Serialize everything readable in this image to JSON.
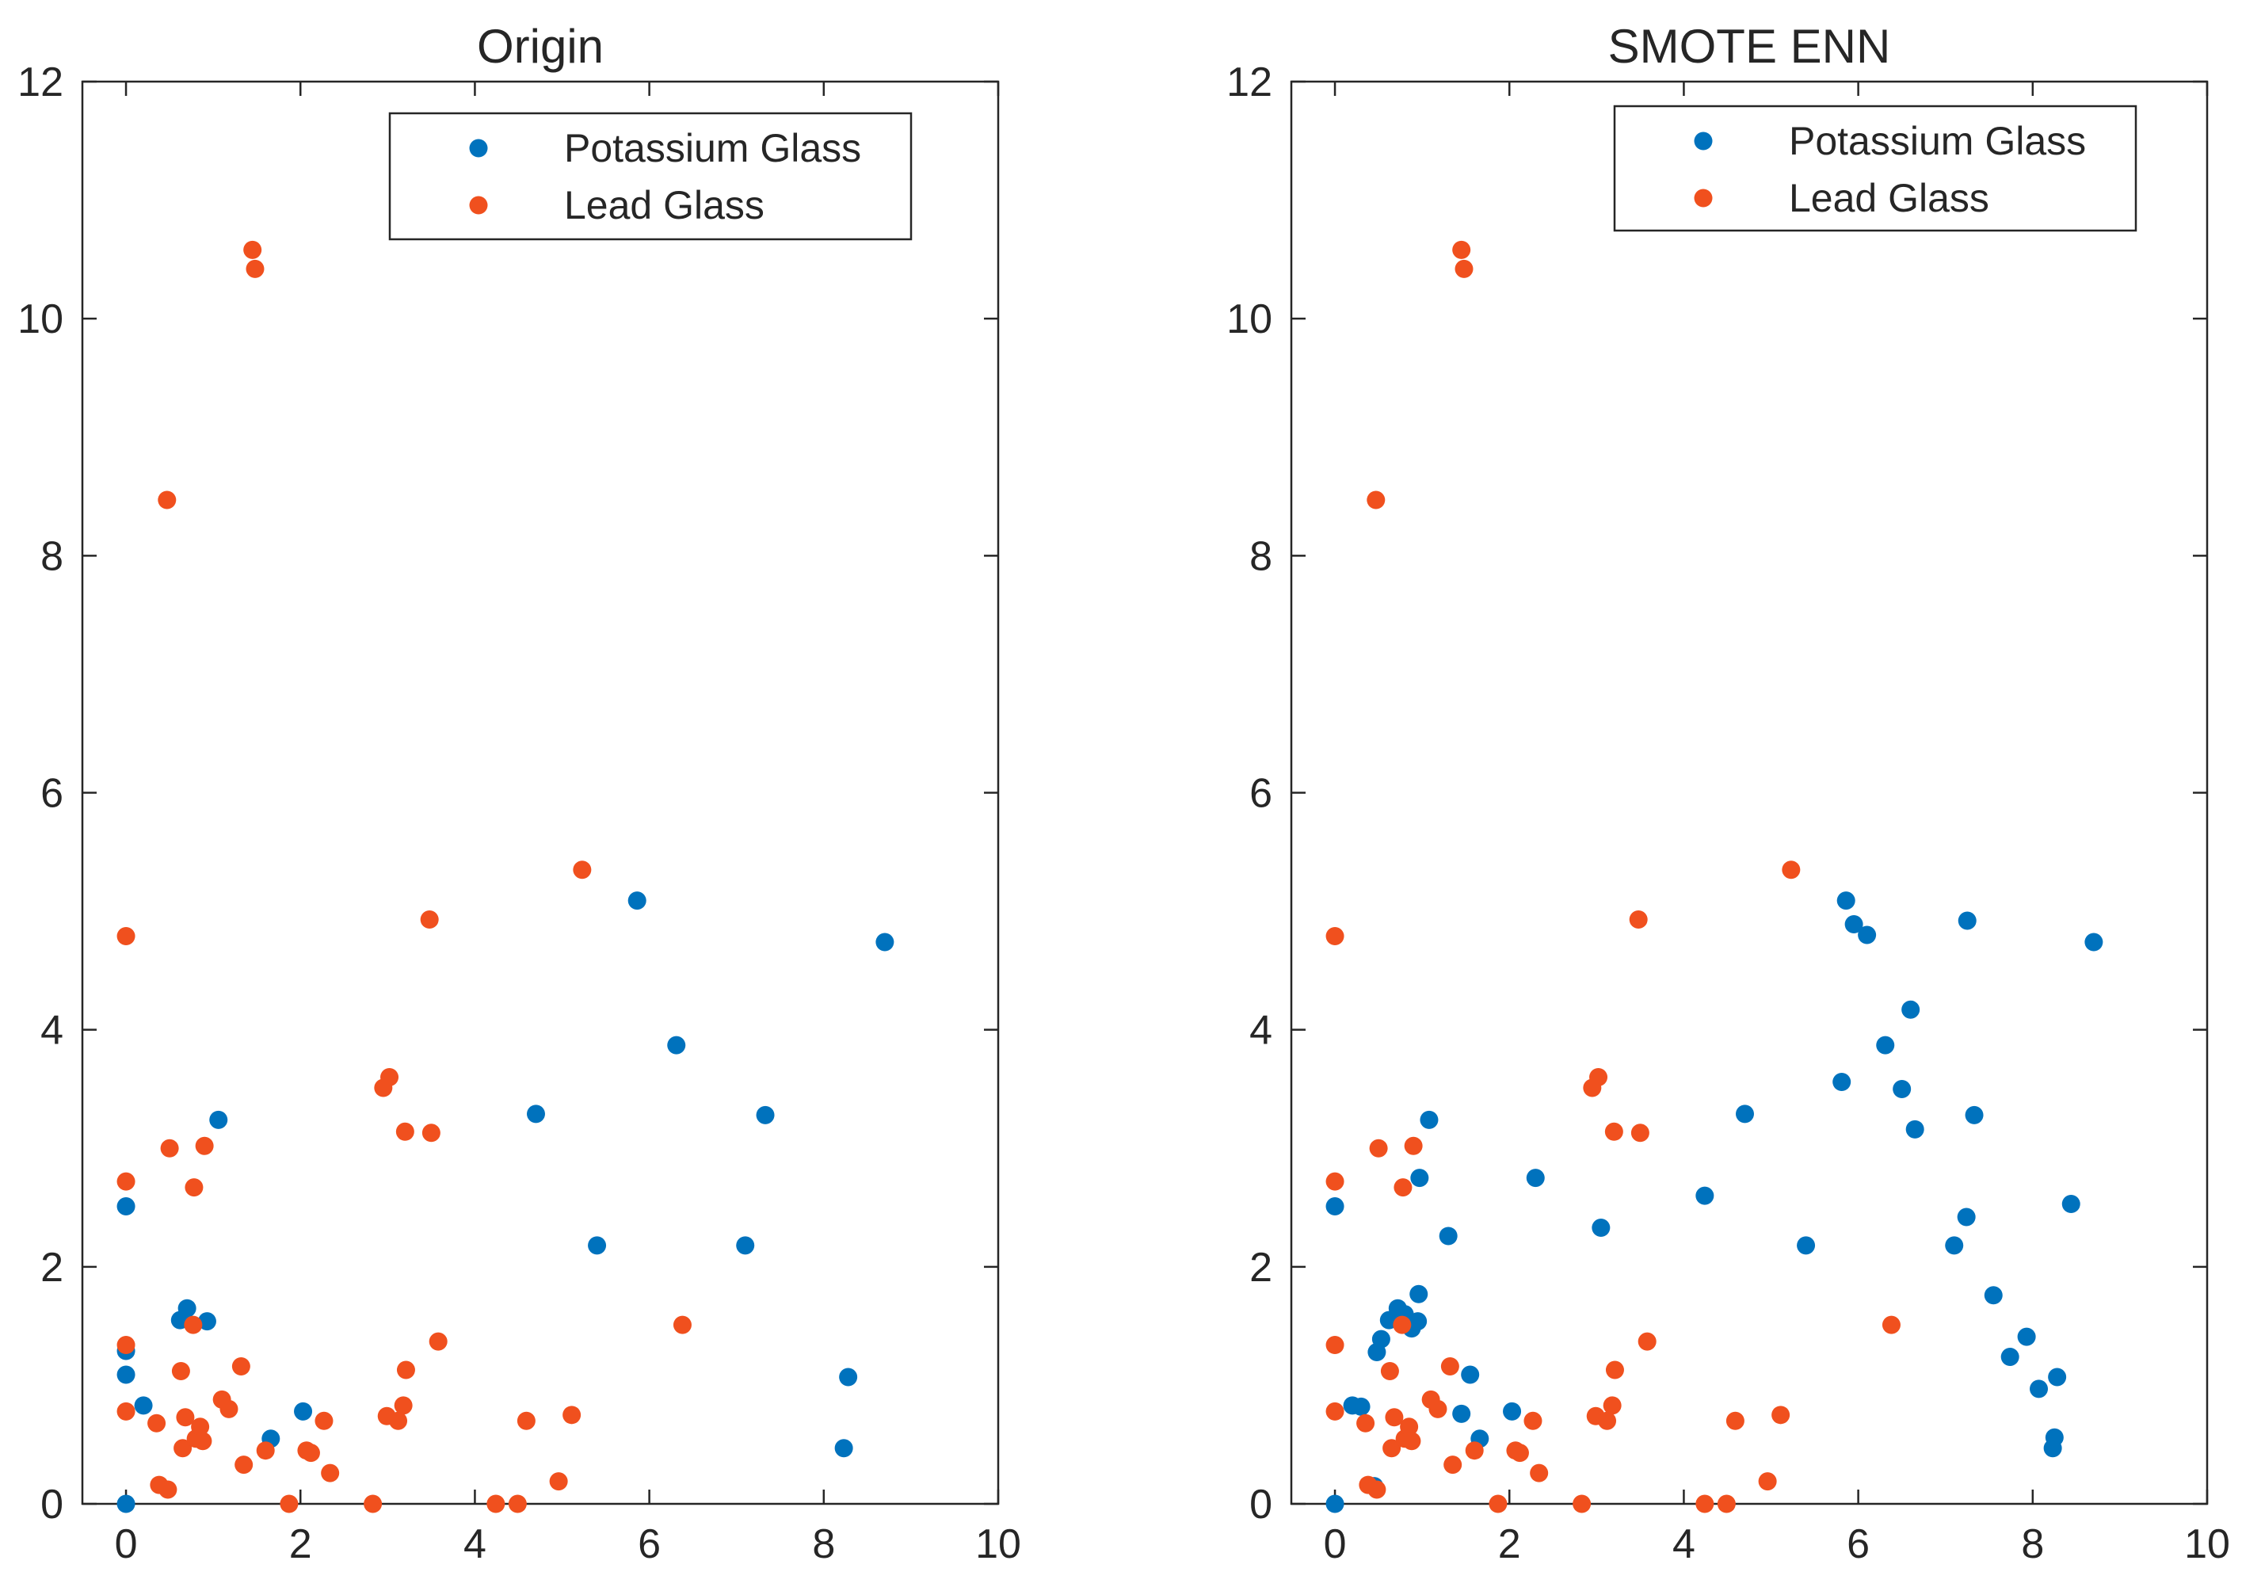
{
  "colors": {
    "potassium": "#0072BD",
    "lead": "#F0501E",
    "axis": "#262626"
  },
  "chart_data": [
    {
      "type": "scatter",
      "title": "Origin",
      "xlabel": "",
      "ylabel": "",
      "xlim": [
        -0.5,
        10
      ],
      "ylim": [
        0,
        12
      ],
      "xticks": [
        "0",
        "2",
        "4",
        "6",
        "8",
        "10"
      ],
      "yticks": [
        "0",
        "2",
        "4",
        "6",
        "8",
        "10",
        "12"
      ],
      "grid": false,
      "legend_position": "top-right",
      "series": [
        {
          "name": "Potassium Glass",
          "color_key": "potassium",
          "x": [
            0,
            0,
            0,
            0,
            0.2,
            0.62,
            0.7,
            0.93,
            1.06,
            1.66,
            2.03,
            4.7,
            5.4,
            5.86,
            6.31,
            7.1,
            7.33,
            8.23,
            8.28,
            8.7
          ],
          "y": [
            0,
            1.09,
            1.29,
            2.51,
            0.83,
            1.55,
            1.65,
            1.54,
            3.24,
            0.55,
            0.78,
            3.29,
            2.18,
            5.09,
            3.87,
            2.18,
            3.28,
            0.47,
            1.07,
            4.74
          ]
        },
        {
          "name": "Lead Glass",
          "color_key": "lead",
          "x": [
            0,
            0,
            0,
            0,
            0.35,
            0.38,
            0.47,
            0.48,
            0.5,
            0.63,
            0.65,
            0.68,
            0.77,
            0.78,
            0.8,
            0.85,
            0.88,
            0.9,
            1.1,
            1.18,
            1.32,
            1.35,
            1.45,
            1.48,
            1.6,
            1.87,
            2.07,
            2.12,
            2.27,
            2.34,
            2.83,
            2.95,
            2.99,
            3.02,
            3.12,
            3.18,
            3.2,
            3.21,
            3.48,
            3.5,
            3.58,
            4.24,
            4.49,
            4.59,
            4.96,
            5.11,
            5.23,
            6.38
          ],
          "y": [
            0.78,
            1.34,
            2.72,
            4.79,
            0.68,
            0.16,
            8.47,
            0.12,
            3.0,
            1.12,
            0.47,
            0.73,
            1.51,
            2.67,
            0.55,
            0.65,
            0.53,
            3.02,
            0.88,
            0.8,
            1.16,
            0.33,
            10.58,
            10.42,
            0.45,
            0,
            0.45,
            0.43,
            0.7,
            0.26,
            0,
            3.51,
            0.74,
            3.6,
            0.7,
            0.83,
            3.14,
            1.13,
            4.93,
            3.13,
            1.37,
            0,
            0,
            0.7,
            0.19,
            0.75,
            5.35,
            1.51
          ]
        }
      ]
    },
    {
      "type": "scatter",
      "title": "SMOTE ENN",
      "xlabel": "",
      "ylabel": "",
      "xlim": [
        -0.5,
        10
      ],
      "ylim": [
        0,
        12
      ],
      "xticks": [
        "0",
        "2",
        "4",
        "6",
        "8",
        "10"
      ],
      "yticks": [
        "0",
        "2",
        "4",
        "6",
        "8",
        "10",
        "12"
      ],
      "grid": false,
      "legend_position": "top-right",
      "series": [
        {
          "name": "Potassium Glass",
          "color_key": "potassium",
          "x": [
            0,
            0,
            0.2,
            0.3,
            0.45,
            0.48,
            0.53,
            0.62,
            0.72,
            0.8,
            0.88,
            0.95,
            0.96,
            0.97,
            1.08,
            1.3,
            1.45,
            1.55,
            1.66,
            2.03,
            2.3,
            3.05,
            4.24,
            4.7,
            5.4,
            5.81,
            5.86,
            5.95,
            6.1,
            6.31,
            6.5,
            6.6,
            6.65,
            7.1,
            7.24,
            7.25,
            7.33,
            7.55,
            7.74,
            7.93,
            8.07,
            8.23,
            8.25,
            8.28,
            8.44,
            8.7
          ],
          "y": [
            0,
            2.51,
            0.83,
            0.82,
            0.15,
            1.28,
            1.39,
            1.55,
            1.65,
            1.6,
            1.48,
            1.54,
            1.77,
            2.75,
            3.24,
            2.26,
            0.76,
            1.09,
            0.55,
            0.78,
            2.75,
            2.33,
            2.6,
            3.29,
            2.18,
            3.56,
            5.09,
            4.89,
            4.8,
            3.87,
            3.5,
            4.17,
            3.16,
            2.18,
            2.42,
            4.92,
            3.28,
            1.76,
            1.24,
            1.41,
            0.97,
            0.47,
            0.56,
            1.07,
            2.53,
            4.74
          ]
        },
        {
          "name": "Lead Glass",
          "color_key": "lead",
          "x": [
            0,
            0,
            0,
            0,
            0.35,
            0.38,
            0.47,
            0.48,
            0.5,
            0.63,
            0.65,
            0.68,
            0.77,
            0.78,
            0.8,
            0.85,
            0.88,
            0.9,
            1.1,
            1.18,
            1.32,
            1.35,
            1.45,
            1.48,
            1.6,
            1.87,
            2.07,
            2.12,
            2.27,
            2.34,
            2.83,
            2.95,
            2.99,
            3.02,
            3.12,
            3.18,
            3.2,
            3.21,
            3.48,
            3.5,
            3.58,
            4.24,
            4.49,
            4.59,
            4.96,
            5.11,
            5.23,
            6.38
          ],
          "y": [
            0.78,
            1.34,
            2.72,
            4.79,
            0.68,
            0.16,
            8.47,
            0.12,
            3.0,
            1.12,
            0.47,
            0.73,
            1.51,
            2.67,
            0.55,
            0.65,
            0.53,
            3.02,
            0.88,
            0.8,
            1.16,
            0.33,
            10.58,
            10.42,
            0.45,
            0,
            0.45,
            0.43,
            0.7,
            0.26,
            0,
            3.51,
            0.74,
            3.6,
            0.7,
            0.83,
            3.14,
            1.13,
            4.93,
            3.13,
            1.37,
            0,
            0,
            0.7,
            0.19,
            0.75,
            5.35,
            1.51
          ]
        }
      ]
    }
  ]
}
